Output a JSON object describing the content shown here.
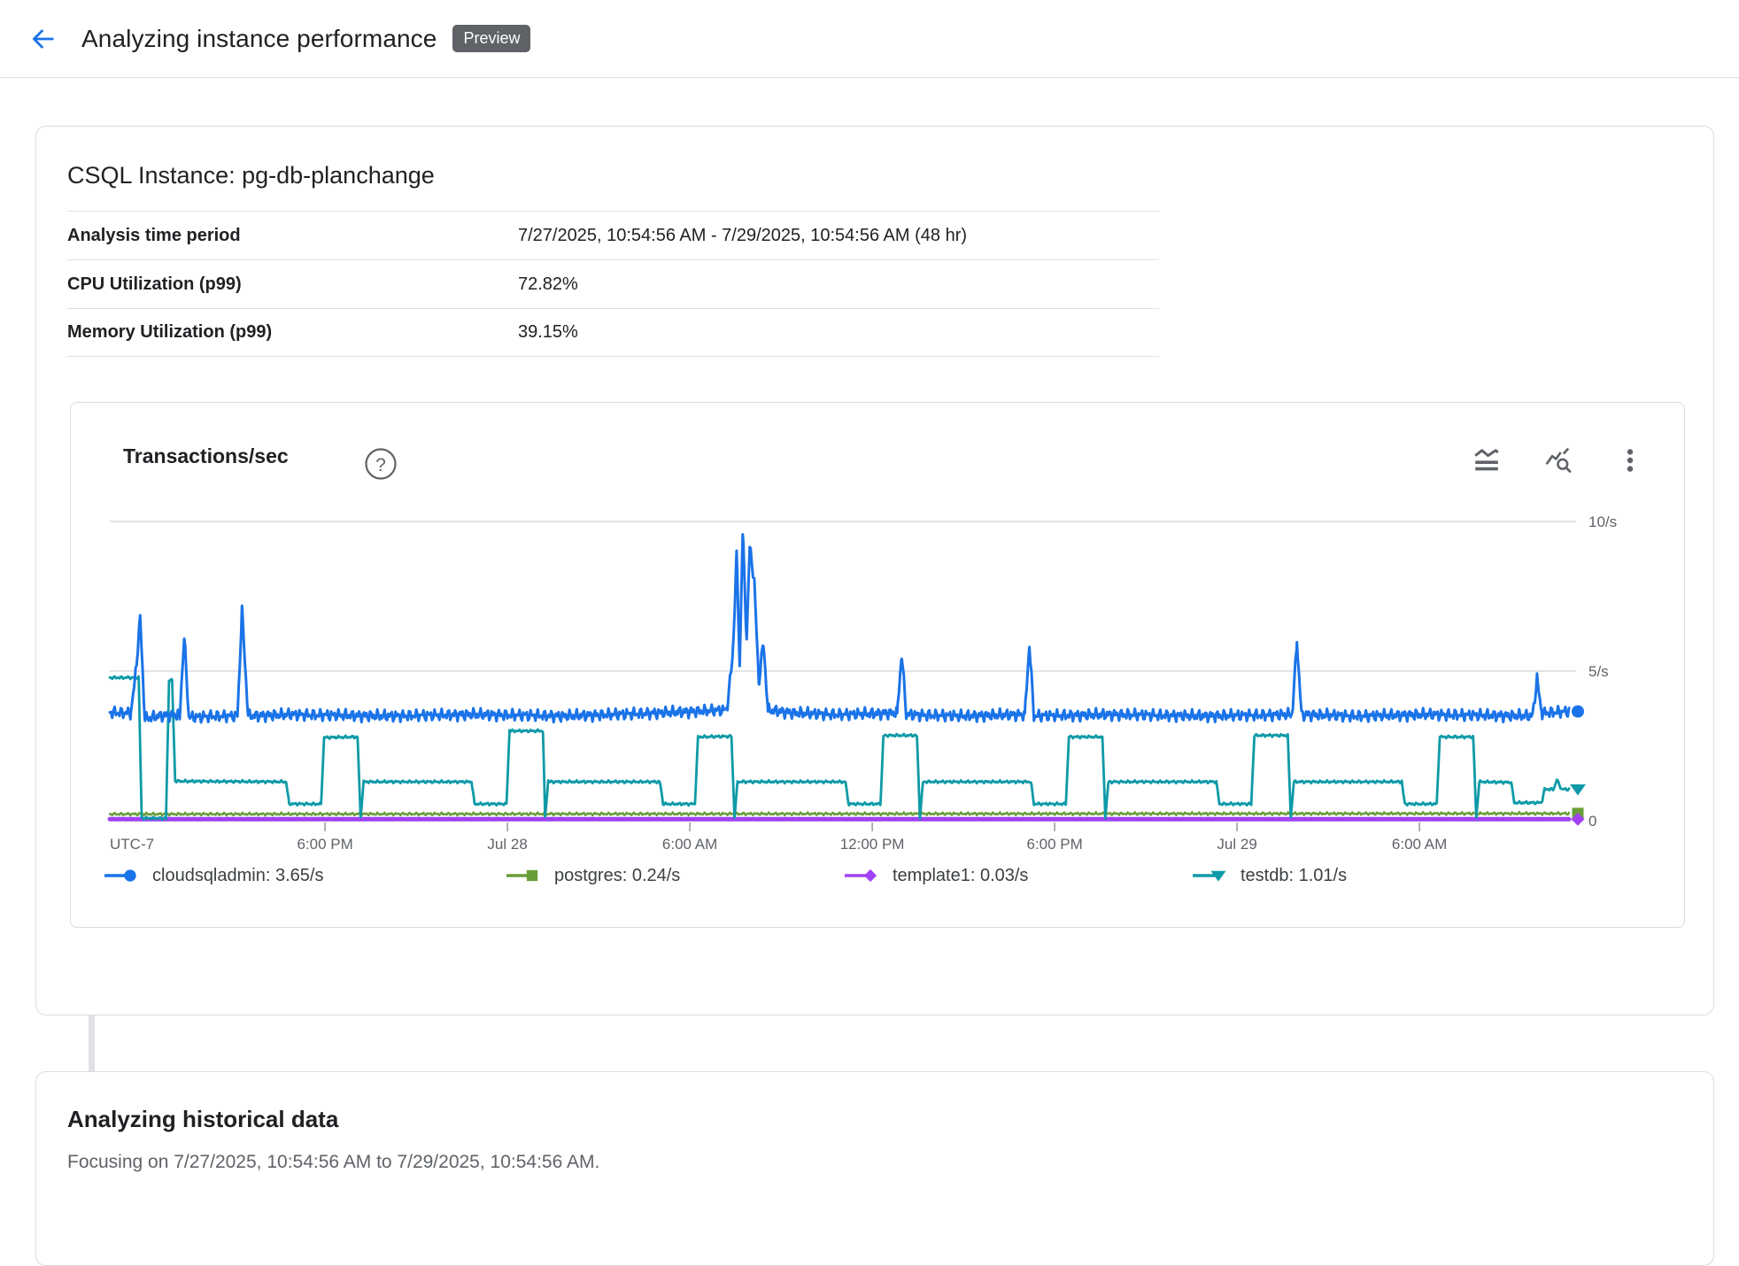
{
  "header": {
    "title": "Analyzing instance performance",
    "badge": "Preview"
  },
  "instance_card": {
    "title": "CSQL Instance: pg-db-planchange",
    "rows": [
      {
        "label": "Analysis time period",
        "value": "7/27/2025, 10:54:56 AM - 7/29/2025, 10:54:56 AM (48 hr)"
      },
      {
        "label": "CPU Utilization (p99)",
        "value": "72.82%"
      },
      {
        "label": "Memory Utilization (p99)",
        "value": "39.15%"
      }
    ]
  },
  "chart_card": {
    "title": "Transactions/sec",
    "help_glyph": "?",
    "toolbar_icons": [
      "stacked-area-icon",
      "explore-data-icon",
      "more-options-icon"
    ]
  },
  "chart_data": {
    "type": "line",
    "title": "Transactions/sec",
    "timezone_label": "UTC-7",
    "x_unit": "hours since 7/27/2025 10:54:56 AM",
    "x_range": [
      0,
      48
    ],
    "ylim": [
      0,
      11.2
    ],
    "grid": true,
    "legend_position": "bottom",
    "y_ticks": [
      {
        "value": 0,
        "label": "0"
      },
      {
        "value": 5,
        "label": "5/s"
      },
      {
        "value": 10,
        "label": "10/s"
      }
    ],
    "x_ticks": [
      {
        "hour": 7.08,
        "label": "6:00 PM"
      },
      {
        "hour": 13.08,
        "label": "Jul 28"
      },
      {
        "hour": 19.08,
        "label": "6:00 AM"
      },
      {
        "hour": 25.08,
        "label": "12:00 PM"
      },
      {
        "hour": 31.08,
        "label": "6:00 PM"
      },
      {
        "hour": 37.08,
        "label": "Jul 29"
      },
      {
        "hour": 43.08,
        "label": "6:00 AM"
      }
    ],
    "series": [
      {
        "name": "cloudsqladmin",
        "legend": "cloudsqladmin: 3.65/s",
        "average": "3.65/s",
        "color": "#1A73E8",
        "marker": "circle",
        "line_width": 3,
        "jitter": 0.22,
        "points": [
          [
            0,
            3.62
          ],
          [
            0.7,
            3.6
          ],
          [
            0.85,
            4.9
          ],
          [
            1.0,
            6.8
          ],
          [
            1.15,
            3.4
          ],
          [
            1.6,
            3.5
          ],
          [
            2.3,
            3.55
          ],
          [
            2.45,
            6.2
          ],
          [
            2.6,
            3.45
          ],
          [
            3.4,
            3.5
          ],
          [
            4.2,
            3.5
          ],
          [
            4.35,
            7.0
          ],
          [
            4.55,
            3.5
          ],
          [
            6,
            3.55
          ],
          [
            9,
            3.5
          ],
          [
            12,
            3.55
          ],
          [
            15,
            3.5
          ],
          [
            18,
            3.6
          ],
          [
            20.3,
            3.7
          ],
          [
            20.5,
            5.6
          ],
          [
            20.62,
            9.0
          ],
          [
            20.72,
            5.2
          ],
          [
            20.82,
            9.7
          ],
          [
            20.95,
            6.0
          ],
          [
            21.05,
            9.2
          ],
          [
            21.2,
            8.0
          ],
          [
            21.35,
            4.6
          ],
          [
            21.5,
            6.0
          ],
          [
            21.65,
            3.7
          ],
          [
            22.5,
            3.6
          ],
          [
            24,
            3.55
          ],
          [
            25.9,
            3.6
          ],
          [
            26.05,
            5.6
          ],
          [
            26.2,
            3.55
          ],
          [
            28,
            3.5
          ],
          [
            30.1,
            3.55
          ],
          [
            30.25,
            5.9
          ],
          [
            30.4,
            3.5
          ],
          [
            33,
            3.55
          ],
          [
            36,
            3.5
          ],
          [
            38.9,
            3.55
          ],
          [
            39.05,
            6.0
          ],
          [
            39.2,
            3.55
          ],
          [
            41,
            3.5
          ],
          [
            43.5,
            3.55
          ],
          [
            46.8,
            3.5
          ],
          [
            46.95,
            4.7
          ],
          [
            47.1,
            3.6
          ],
          [
            48,
            3.65
          ]
        ]
      },
      {
        "name": "postgres",
        "legend": "postgres: 0.24/s",
        "average": "0.24/s",
        "color": "#689F38",
        "marker": "square",
        "line_width": 2.5,
        "jitter": 0.05,
        "points": [
          [
            0,
            0.22
          ],
          [
            48,
            0.24
          ]
        ]
      },
      {
        "name": "template1",
        "legend": "template1: 0.03/s",
        "average": "0.03/s",
        "color": "#A142F4",
        "marker": "diamond",
        "line_width": 5,
        "jitter": 0,
        "points": [
          [
            0,
            0.05
          ],
          [
            48,
            0.05
          ]
        ]
      },
      {
        "name": "testdb",
        "legend": "testdb: 1.01/s",
        "average": "1.01/s",
        "color": "#0E9AA7",
        "marker": "triangle-down",
        "line_width": 2.8,
        "jitter": 0.05,
        "points": [
          [
            0,
            4.78
          ],
          [
            0.95,
            4.78
          ],
          [
            1.05,
            0.08
          ],
          [
            1.85,
            0.08
          ],
          [
            1.95,
            4.7
          ],
          [
            2.05,
            4.7
          ],
          [
            2.15,
            1.32
          ],
          [
            5.8,
            1.3
          ],
          [
            5.9,
            0.56
          ],
          [
            6.95,
            0.56
          ],
          [
            7.05,
            2.78
          ],
          [
            8.15,
            2.8
          ],
          [
            8.25,
            0.1
          ],
          [
            8.35,
            1.3
          ],
          [
            11.9,
            1.3
          ],
          [
            12.0,
            0.56
          ],
          [
            13.05,
            0.56
          ],
          [
            13.15,
            3.0
          ],
          [
            14.25,
            3.0
          ],
          [
            14.32,
            0.1
          ],
          [
            14.42,
            1.3
          ],
          [
            18.1,
            1.3
          ],
          [
            18.2,
            0.56
          ],
          [
            19.25,
            0.56
          ],
          [
            19.35,
            2.8
          ],
          [
            20.45,
            2.82
          ],
          [
            20.55,
            0.1
          ],
          [
            20.65,
            1.3
          ],
          [
            24.2,
            1.3
          ],
          [
            24.3,
            0.56
          ],
          [
            25.35,
            0.56
          ],
          [
            25.45,
            2.85
          ],
          [
            26.55,
            2.85
          ],
          [
            26.65,
            0.1
          ],
          [
            26.75,
            1.3
          ],
          [
            30.3,
            1.3
          ],
          [
            30.4,
            0.56
          ],
          [
            31.45,
            0.56
          ],
          [
            31.55,
            2.8
          ],
          [
            32.65,
            2.8
          ],
          [
            32.75,
            0.1
          ],
          [
            32.85,
            1.3
          ],
          [
            36.4,
            1.3
          ],
          [
            36.5,
            0.56
          ],
          [
            37.55,
            0.56
          ],
          [
            37.65,
            2.85
          ],
          [
            38.75,
            2.85
          ],
          [
            38.85,
            0.1
          ],
          [
            38.95,
            1.3
          ],
          [
            42.5,
            1.3
          ],
          [
            42.6,
            0.56
          ],
          [
            43.65,
            0.56
          ],
          [
            43.75,
            2.8
          ],
          [
            44.85,
            2.8
          ],
          [
            44.95,
            0.1
          ],
          [
            45.05,
            1.3
          ],
          [
            46.1,
            1.28
          ],
          [
            46.2,
            0.6
          ],
          [
            47.1,
            0.6
          ],
          [
            47.2,
            1.05
          ],
          [
            47.5,
            1.05
          ],
          [
            47.6,
            1.38
          ],
          [
            47.75,
            1.05
          ],
          [
            48,
            1.05
          ]
        ]
      }
    ]
  },
  "history_card": {
    "title": "Analyzing historical data",
    "body": "Focusing on 7/27/2025, 10:54:56 AM to 7/29/2025, 10:54:56 AM."
  }
}
